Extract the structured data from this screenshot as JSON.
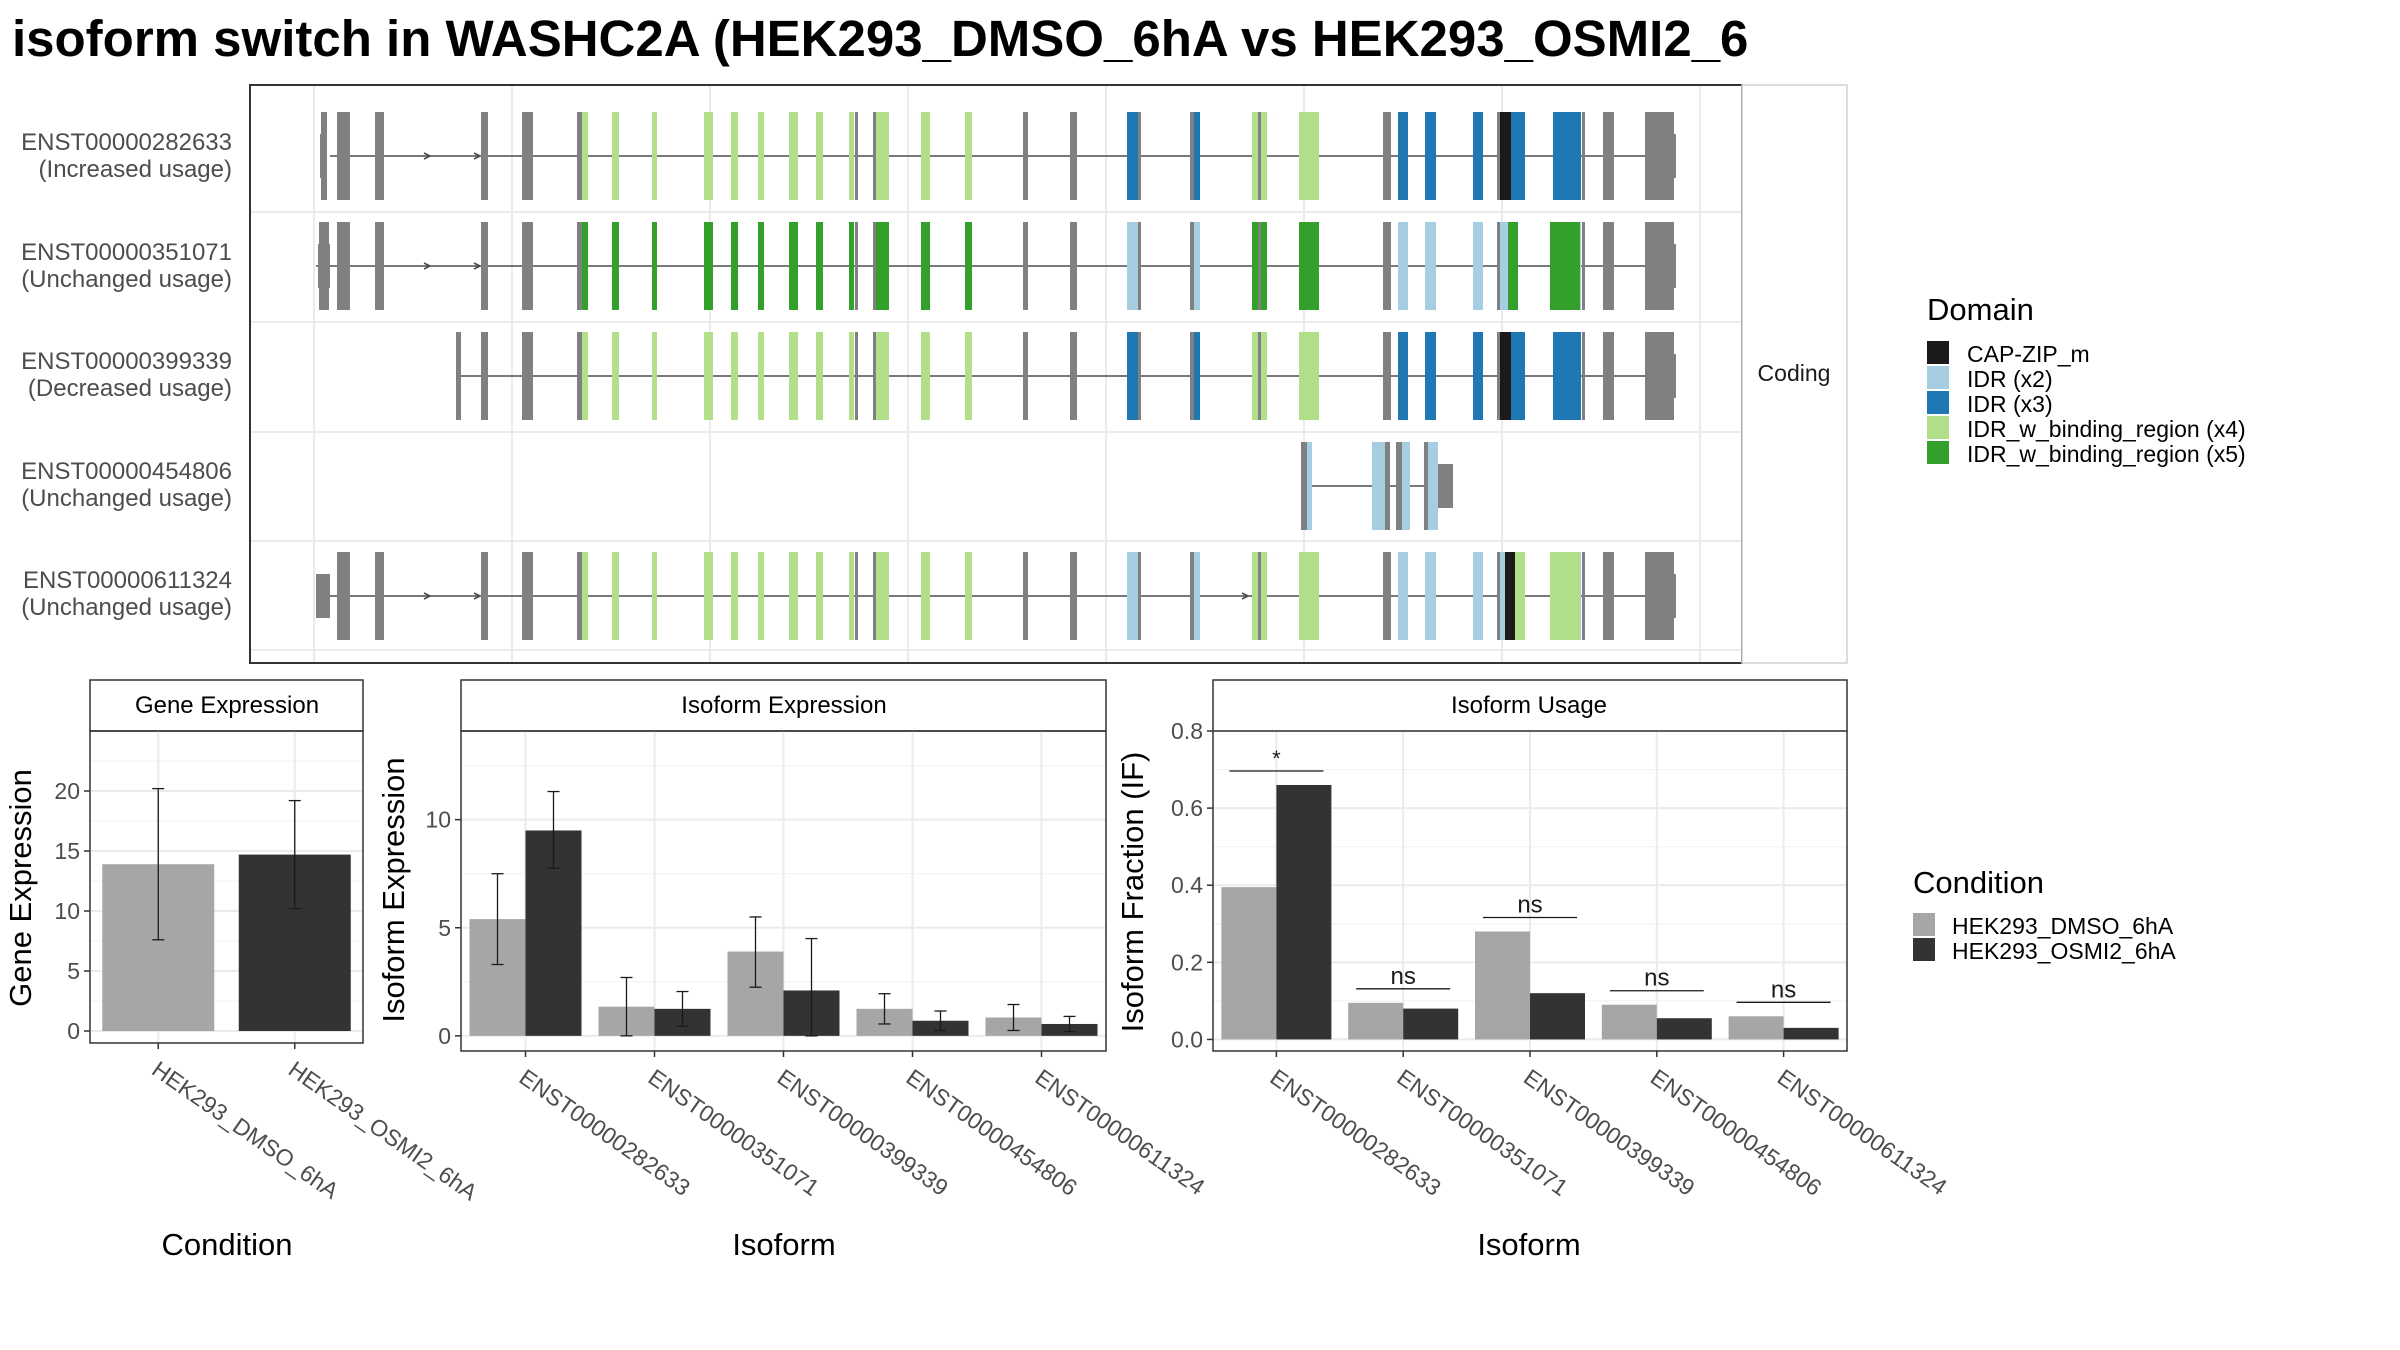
{
  "title": "isoform switch in WASHC2A (HEK293_DMSO_6hA vs HEK293_OSMI2_6",
  "structure": {
    "facet_label": "Coding",
    "isoforms": [
      {
        "id": "ENST00000282633",
        "usage": "(Increased usage)"
      },
      {
        "id": "ENST00000351071",
        "usage": "(Unchanged usage)"
      },
      {
        "id": "ENST00000399339",
        "usage": "(Decreased usage)"
      },
      {
        "id": "ENST00000454806",
        "usage": "(Unchanged usage)"
      },
      {
        "id": "ENST00000611324",
        "usage": "(Unchanged usage)"
      }
    ]
  },
  "domain_legend": {
    "title": "Domain",
    "items": [
      {
        "label": "CAP-ZIP_m",
        "color": "#1a1a1a"
      },
      {
        "label": "IDR (x2)",
        "color": "#a6cee3"
      },
      {
        "label": "IDR (x3)",
        "color": "#1f78b4"
      },
      {
        "label": "IDR_w_binding_region (x4)",
        "color": "#b2df8a"
      },
      {
        "label": "IDR_w_binding_region (x5)",
        "color": "#33a02c"
      }
    ]
  },
  "condition_legend": {
    "title": "Condition",
    "items": [
      {
        "label": "HEK293_DMSO_6hA",
        "color": "#a6a6a6"
      },
      {
        "label": "HEK293_OSMI2_6hA",
        "color": "#333333"
      }
    ]
  },
  "colors": {
    "exon": "#808080",
    "intron": "#4d4d4d",
    "grid": "#ebebeb",
    "panel_border": "#333333"
  },
  "chart_data": [
    {
      "type": "bar",
      "title": "Gene Expression",
      "xlabel": "Condition",
      "ylabel": "Gene Expression",
      "categories": [
        "HEK293_DMSO_6hA",
        "HEK293_OSMI2_6hA"
      ],
      "values": [
        13.9,
        14.7
      ],
      "error_low": [
        7.6,
        10.2
      ],
      "error_high": [
        20.2,
        19.2
      ],
      "ylim": [
        -1,
        25
      ],
      "yticks": [
        0,
        5,
        10,
        15,
        20
      ]
    },
    {
      "type": "bar",
      "title": "Isoform Expression",
      "xlabel": "Isoform",
      "ylabel": "Isoform Expression",
      "categories": [
        "ENST00000282633",
        "ENST00000351071",
        "ENST00000399339",
        "ENST00000454806",
        "ENST00000611324"
      ],
      "series": [
        {
          "name": "HEK293_DMSO_6hA",
          "values": [
            5.4,
            1.35,
            3.9,
            1.25,
            0.85
          ],
          "error_low": [
            3.3,
            0.0,
            2.25,
            0.55,
            0.25
          ],
          "error_high": [
            7.5,
            2.7,
            5.5,
            1.95,
            1.45
          ]
        },
        {
          "name": "HEK293_OSMI2_6hA",
          "values": [
            9.5,
            1.25,
            2.1,
            0.7,
            0.55
          ],
          "error_low": [
            7.75,
            0.45,
            0.0,
            0.25,
            0.2
          ],
          "error_high": [
            11.3,
            2.05,
            4.5,
            1.15,
            0.9
          ]
        }
      ],
      "ylim": [
        -0.7,
        14.1
      ],
      "yticks": [
        0,
        5,
        10
      ]
    },
    {
      "type": "bar",
      "title": "Isoform Usage",
      "xlabel": "Isoform",
      "ylabel": "Isoform Fraction (IF)",
      "categories": [
        "ENST00000282633",
        "ENST00000351071",
        "ENST00000399339",
        "ENST00000454806",
        "ENST00000611324"
      ],
      "series": [
        {
          "name": "HEK293_DMSO_6hA",
          "values": [
            0.395,
            0.095,
            0.28,
            0.09,
            0.06
          ]
        },
        {
          "name": "HEK293_OSMI2_6hA",
          "values": [
            0.66,
            0.08,
            0.12,
            0.055,
            0.03
          ]
        }
      ],
      "significance": [
        "*",
        "ns",
        "ns",
        "ns",
        "ns"
      ],
      "ylim": [
        -0.03,
        0.8
      ],
      "yticks": [
        "0.0",
        "0.2",
        "0.4",
        "0.6",
        "0.8"
      ]
    }
  ]
}
